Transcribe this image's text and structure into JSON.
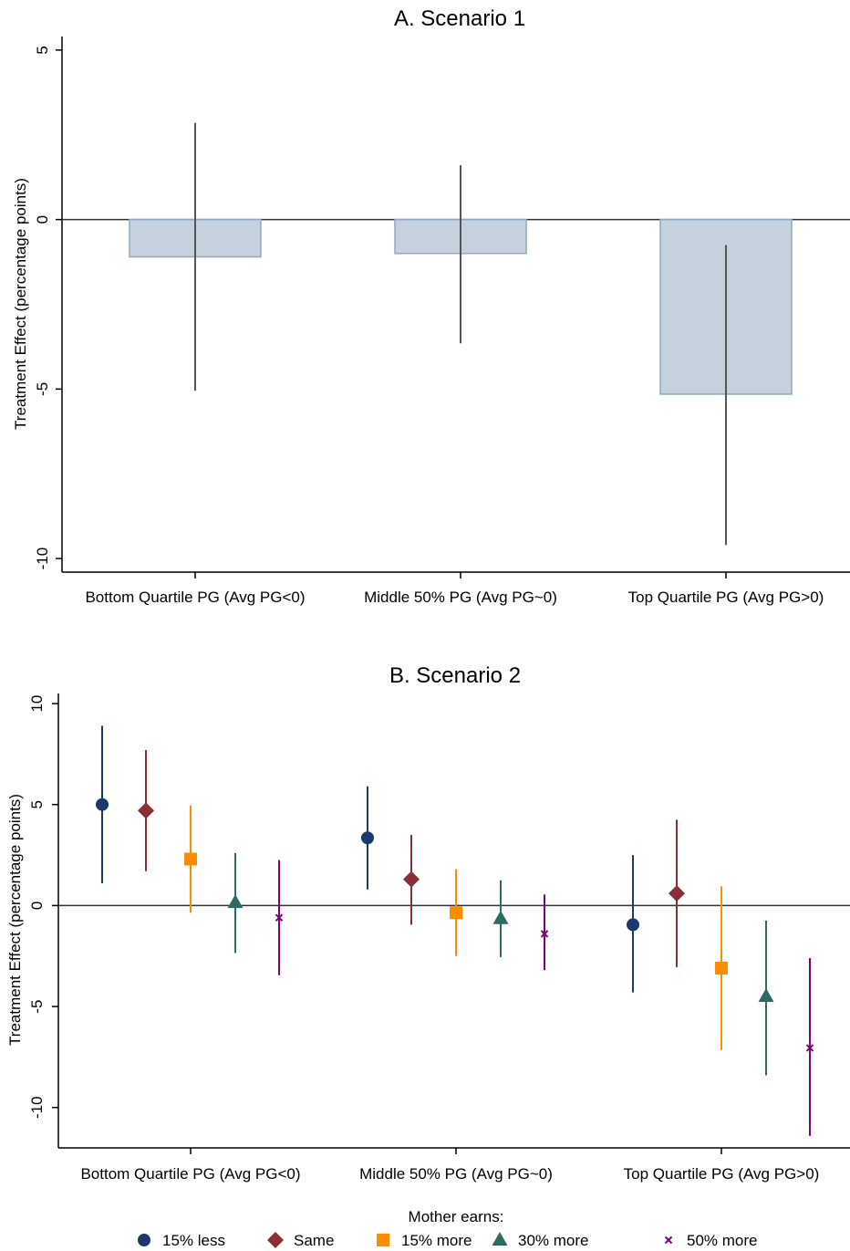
{
  "chart_data": [
    {
      "type": "bar",
      "title": "A. Scenario 1",
      "ylabel": "Treatment Effect (percentage points)",
      "xlabel": "",
      "categories": [
        "Bottom Quartile PG (Avg PG<0)",
        "Middle 50% PG (Avg PG~0)",
        "Top Quartile PG (Avg PG>0)"
      ],
      "values": [
        -1.1,
        -1.0,
        -5.15
      ],
      "ci_low": [
        -5.05,
        -3.65,
        -9.6
      ],
      "ci_high": [
        2.85,
        1.6,
        -0.75
      ],
      "yticks": [
        5,
        0,
        -5,
        -10
      ],
      "ylim": [
        -10.4,
        5.4
      ],
      "bar_color": "#c5d1dc",
      "bar_edge": "#8fa7bf",
      "ci_color": "#555555"
    },
    {
      "type": "scatter",
      "title": "B. Scenario 2",
      "ylabel": "Treatment Effect (percentage points)",
      "xlabel": "",
      "categories": [
        "Bottom Quartile PG (Avg PG<0)",
        "Middle 50% PG (Avg PG~0)",
        "Top Quartile PG (Avg PG>0)"
      ],
      "yticks": [
        10,
        5,
        0,
        -5,
        -10
      ],
      "ylim": [
        -12,
        10.5
      ],
      "legend_title": "Mother earns:",
      "legend_position": "bottom",
      "series": [
        {
          "name": "15% less",
          "marker": "circle",
          "color": "#1a3a6b",
          "values": [
            5.0,
            3.35,
            -0.95
          ],
          "ci_low": [
            1.1,
            0.8,
            -4.3
          ],
          "ci_high": [
            8.9,
            5.9,
            2.5
          ]
        },
        {
          "name": "Same",
          "marker": "diamond",
          "color": "#8b2e36",
          "values": [
            4.7,
            1.3,
            0.6
          ],
          "ci_low": [
            1.7,
            -0.95,
            -3.05
          ],
          "ci_high": [
            7.7,
            3.5,
            4.25
          ]
        },
        {
          "name": "15% more",
          "marker": "square",
          "color": "#ff8c00",
          "values": [
            2.3,
            -0.35,
            -3.1
          ],
          "ci_low": [
            -0.35,
            -2.5,
            -7.15
          ],
          "ci_high": [
            4.95,
            1.8,
            0.95
          ]
        },
        {
          "name": "30% more",
          "marker": "triangle",
          "color": "#2e6b62",
          "values": [
            0.15,
            -0.65,
            -4.5
          ],
          "ci_low": [
            -2.35,
            -2.55,
            -8.4
          ],
          "ci_high": [
            2.6,
            1.25,
            -0.75
          ]
        },
        {
          "name": "50% more",
          "marker": "x",
          "color": "#800080",
          "values": [
            -0.6,
            -1.4,
            -7.05
          ],
          "ci_low": [
            -3.45,
            -3.2,
            -11.4
          ],
          "ci_high": [
            2.25,
            0.55,
            -2.6
          ]
        }
      ]
    }
  ]
}
